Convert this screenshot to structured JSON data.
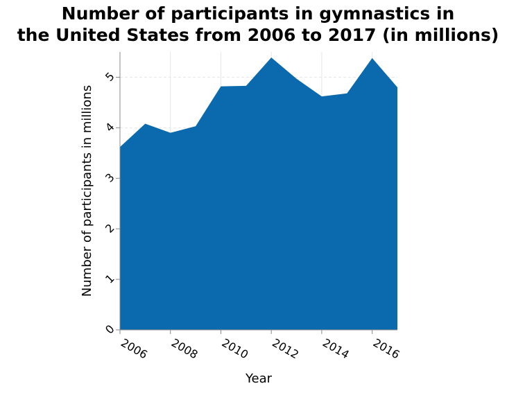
{
  "chart_data": {
    "type": "area",
    "title_lines": [
      "Number of participants in gymnastics in",
      "the United States from 2006 to 2017 (in millions)"
    ],
    "xlabel": "Year",
    "ylabel": "Number of participants in millions",
    "x": [
      2006,
      2007,
      2008,
      2009,
      2010,
      2011,
      2012,
      2013,
      2014,
      2015,
      2016,
      2017
    ],
    "values": [
      3.62,
      4.08,
      3.9,
      4.03,
      4.82,
      4.83,
      5.39,
      4.97,
      4.62,
      4.68,
      5.38,
      4.8
    ],
    "xlim": [
      2006,
      2017
    ],
    "ylim": [
      0,
      5.5
    ],
    "x_ticks": [
      2006,
      2008,
      2010,
      2012,
      2014,
      2016
    ],
    "y_ticks": [
      0,
      1,
      2,
      3,
      4,
      5
    ],
    "grid": true,
    "colors": {
      "fill": "#0a6aad",
      "grid": "#e6e6e6",
      "axis": "#888888"
    }
  }
}
